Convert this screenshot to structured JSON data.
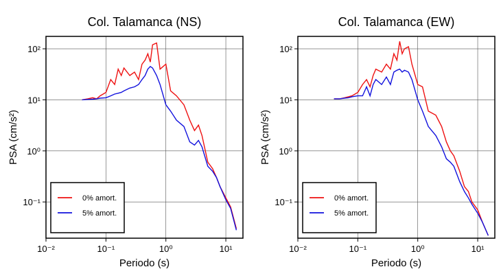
{
  "chart_data": [
    {
      "type": "line",
      "title": "Col. Talamanca (NS)",
      "xlabel": "Periodo (s)",
      "ylabel": "PSA (cm/s²)",
      "xscale": "log",
      "yscale": "log",
      "grid": true,
      "legend": "lower left",
      "xlim": [
        0.01,
        19.3
      ],
      "ylim": [
        0.0195,
        175
      ],
      "xticks": [
        {
          "value": 0.01,
          "label": "10⁻²"
        },
        {
          "value": 0.1,
          "label": "10⁻¹"
        },
        {
          "value": 1,
          "label": "10⁰"
        },
        {
          "value": 10,
          "label": "10¹"
        }
      ],
      "yticks": [
        {
          "value": 0.1,
          "label": "10⁻¹"
        },
        {
          "value": 1,
          "label": "10⁰"
        },
        {
          "value": 10,
          "label": "10¹"
        },
        {
          "value": 100,
          "label": "10²"
        }
      ],
      "x": [
        0.04,
        0.05,
        0.06,
        0.07,
        0.08,
        0.1,
        0.12,
        0.14,
        0.16,
        0.18,
        0.2,
        0.25,
        0.3,
        0.35,
        0.4,
        0.45,
        0.5,
        0.55,
        0.6,
        0.7,
        0.8,
        1.0,
        1.2,
        1.5,
        2.0,
        2.5,
        3.0,
        3.5,
        4.0,
        5.0,
        6.0,
        7.0,
        8.0,
        10,
        12,
        15
      ],
      "series": [
        {
          "name": "0% amort.",
          "color": "#ee1111",
          "values": [
            10,
            10.5,
            11,
            10.5,
            12,
            14,
            25,
            20,
            40,
            30,
            42,
            30,
            35,
            25,
            50,
            60,
            80,
            55,
            120,
            130,
            40,
            50,
            15,
            12,
            8,
            4,
            2.5,
            3.2,
            2,
            0.6,
            0.45,
            0.3,
            0.2,
            0.12,
            0.08,
            0.03
          ]
        },
        {
          "name": "5% amort.",
          "color": "#1111dd",
          "values": [
            10,
            10.2,
            10.3,
            10.5,
            10.8,
            11,
            12,
            13,
            13.5,
            14,
            15,
            17,
            18,
            20,
            25,
            30,
            40,
            45,
            42,
            30,
            20,
            8,
            6,
            4,
            3,
            1.5,
            1.3,
            1.6,
            1.2,
            0.5,
            0.4,
            0.3,
            0.2,
            0.11,
            0.075,
            0.028
          ]
        }
      ]
    },
    {
      "type": "line",
      "title": "Col. Talamanca (EW)",
      "xlabel": "Periodo (s)",
      "ylabel": "PSA (cm/s²)",
      "xscale": "log",
      "yscale": "log",
      "grid": true,
      "legend": "lower left",
      "xlim": [
        0.01,
        19.3
      ],
      "ylim": [
        0.0195,
        175
      ],
      "xticks": [
        {
          "value": 0.01,
          "label": "10⁻²"
        },
        {
          "value": 0.1,
          "label": "10⁻¹"
        },
        {
          "value": 1,
          "label": "10⁰"
        },
        {
          "value": 10,
          "label": "10¹"
        }
      ],
      "yticks": [
        {
          "value": 0.1,
          "label": "10⁻¹"
        },
        {
          "value": 1,
          "label": "10⁰"
        },
        {
          "value": 10,
          "label": "10¹"
        },
        {
          "value": 100,
          "label": "10²"
        }
      ],
      "x": [
        0.04,
        0.05,
        0.06,
        0.07,
        0.08,
        0.1,
        0.12,
        0.14,
        0.16,
        0.18,
        0.2,
        0.25,
        0.3,
        0.35,
        0.4,
        0.45,
        0.5,
        0.55,
        0.6,
        0.7,
        0.8,
        1.0,
        1.2,
        1.5,
        2.0,
        2.5,
        3.0,
        3.5,
        4.0,
        5.0,
        6.0,
        7.0,
        8.0,
        10,
        12,
        15
      ],
      "series": [
        {
          "name": "0% amort.",
          "color": "#ee1111",
          "values": [
            10.5,
            10.5,
            11,
            11.5,
            12,
            14,
            20,
            25,
            18,
            30,
            40,
            35,
            50,
            40,
            80,
            60,
            140,
            80,
            100,
            110,
            50,
            20,
            18,
            6,
            5,
            3,
            1.5,
            1.0,
            0.8,
            0.4,
            0.2,
            0.16,
            0.1,
            0.07,
            0.04,
            0.022
          ]
        },
        {
          "name": "5% amort.",
          "color": "#1111dd",
          "values": [
            10.5,
            10.5,
            10.8,
            11,
            11.5,
            12,
            12,
            18,
            12,
            20,
            25,
            20,
            28,
            20,
            35,
            38,
            40,
            35,
            38,
            35,
            25,
            10,
            6,
            3,
            2,
            1.2,
            0.7,
            0.6,
            0.5,
            0.25,
            0.16,
            0.12,
            0.09,
            0.06,
            0.04,
            0.022
          ]
        }
      ]
    }
  ]
}
